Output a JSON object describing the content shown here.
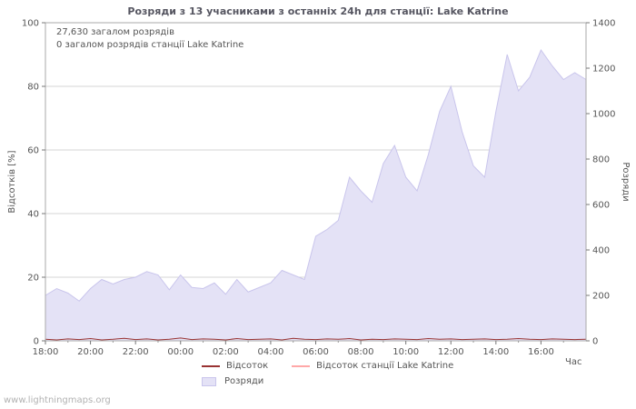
{
  "page": {
    "watermark": "www.lightningmaps.org"
  },
  "chart_data": {
    "type": "area",
    "title": "Розряди з 13 учасниками з останніх 24h для станції: Lake Katrine",
    "xlabel": "Час",
    "ylabel_left": "Відсотків  [%]",
    "ylabel_right": "Розряди",
    "annotations": [
      "27,630 загалом розрядів",
      "0 загалом розрядів станції Lake Katrine"
    ],
    "x_ticks": [
      "18:00",
      "20:00",
      "22:00",
      "00:00",
      "02:00",
      "04:00",
      "06:00",
      "08:00",
      "10:00",
      "12:00",
      "14:00",
      "16:00"
    ],
    "x_tick_step_hours": 2,
    "x_range_hours": 24,
    "y_left_ticks": [
      0,
      20,
      40,
      60,
      80,
      100
    ],
    "y_right_ticks": [
      0,
      200,
      400,
      600,
      800,
      1000,
      1200,
      1400
    ],
    "ylim_left": [
      0,
      100
    ],
    "ylim_right": [
      0,
      1400
    ],
    "grid": true,
    "legend_position": "bottom",
    "series": [
      {
        "name": "Розряди",
        "type": "area",
        "axis": "right",
        "color": "#e4e2f6",
        "stroke": "#c9c5ec",
        "values": [
          200,
          230,
          210,
          175,
          230,
          270,
          250,
          270,
          280,
          305,
          290,
          225,
          290,
          235,
          230,
          255,
          205,
          270,
          215,
          235,
          255,
          310,
          290,
          270,
          460,
          490,
          530,
          720,
          660,
          610,
          780,
          860,
          720,
          660,
          820,
          1010,
          1120,
          920,
          770,
          720,
          1010,
          1260,
          1100,
          1160,
          1280,
          1210,
          1150,
          1180,
          1150
        ]
      },
      {
        "name": "Відсоток",
        "type": "line",
        "axis": "left",
        "color": "#993333",
        "values": [
          0.5,
          0.3,
          0.6,
          0.4,
          0.7,
          0.3,
          0.5,
          0.8,
          0.4,
          0.6,
          0.3,
          0.5,
          0.9,
          0.4,
          0.6,
          0.5,
          0.3,
          0.7,
          0.4,
          0.5,
          0.6,
          0.3,
          0.8,
          0.5,
          0.4,
          0.6,
          0.5,
          0.7,
          0.3,
          0.5,
          0.4,
          0.6,
          0.5,
          0.4,
          0.7,
          0.5,
          0.6,
          0.4,
          0.5,
          0.6,
          0.4,
          0.5,
          0.7,
          0.5,
          0.4,
          0.6,
          0.5,
          0.4,
          0.5
        ]
      },
      {
        "name": "Відсоток станції Lake Katrine",
        "type": "line",
        "axis": "left",
        "color": "#ffa8a8",
        "values": [
          0,
          0,
          0,
          0,
          0,
          0,
          0,
          0,
          0,
          0,
          0,
          0,
          0,
          0,
          0,
          0,
          0,
          0,
          0,
          0,
          0,
          0,
          0,
          0,
          0,
          0,
          0,
          0,
          0,
          0,
          0,
          0,
          0,
          0,
          0,
          0,
          0,
          0,
          0,
          0,
          0,
          0,
          0,
          0,
          0,
          0,
          0,
          0,
          0
        ]
      }
    ],
    "totals": {
      "all_discharges": "27,630",
      "station_discharges": "0"
    }
  },
  "legend": {
    "items": [
      {
        "label": "Відсоток",
        "color": "#993333",
        "marker": "line"
      },
      {
        "label": "Відсоток станції Lake Katrine",
        "color": "#ffa8a8",
        "marker": "line"
      },
      {
        "label": "Розряди",
        "color": "#e4e2f6",
        "marker": "area"
      }
    ]
  }
}
